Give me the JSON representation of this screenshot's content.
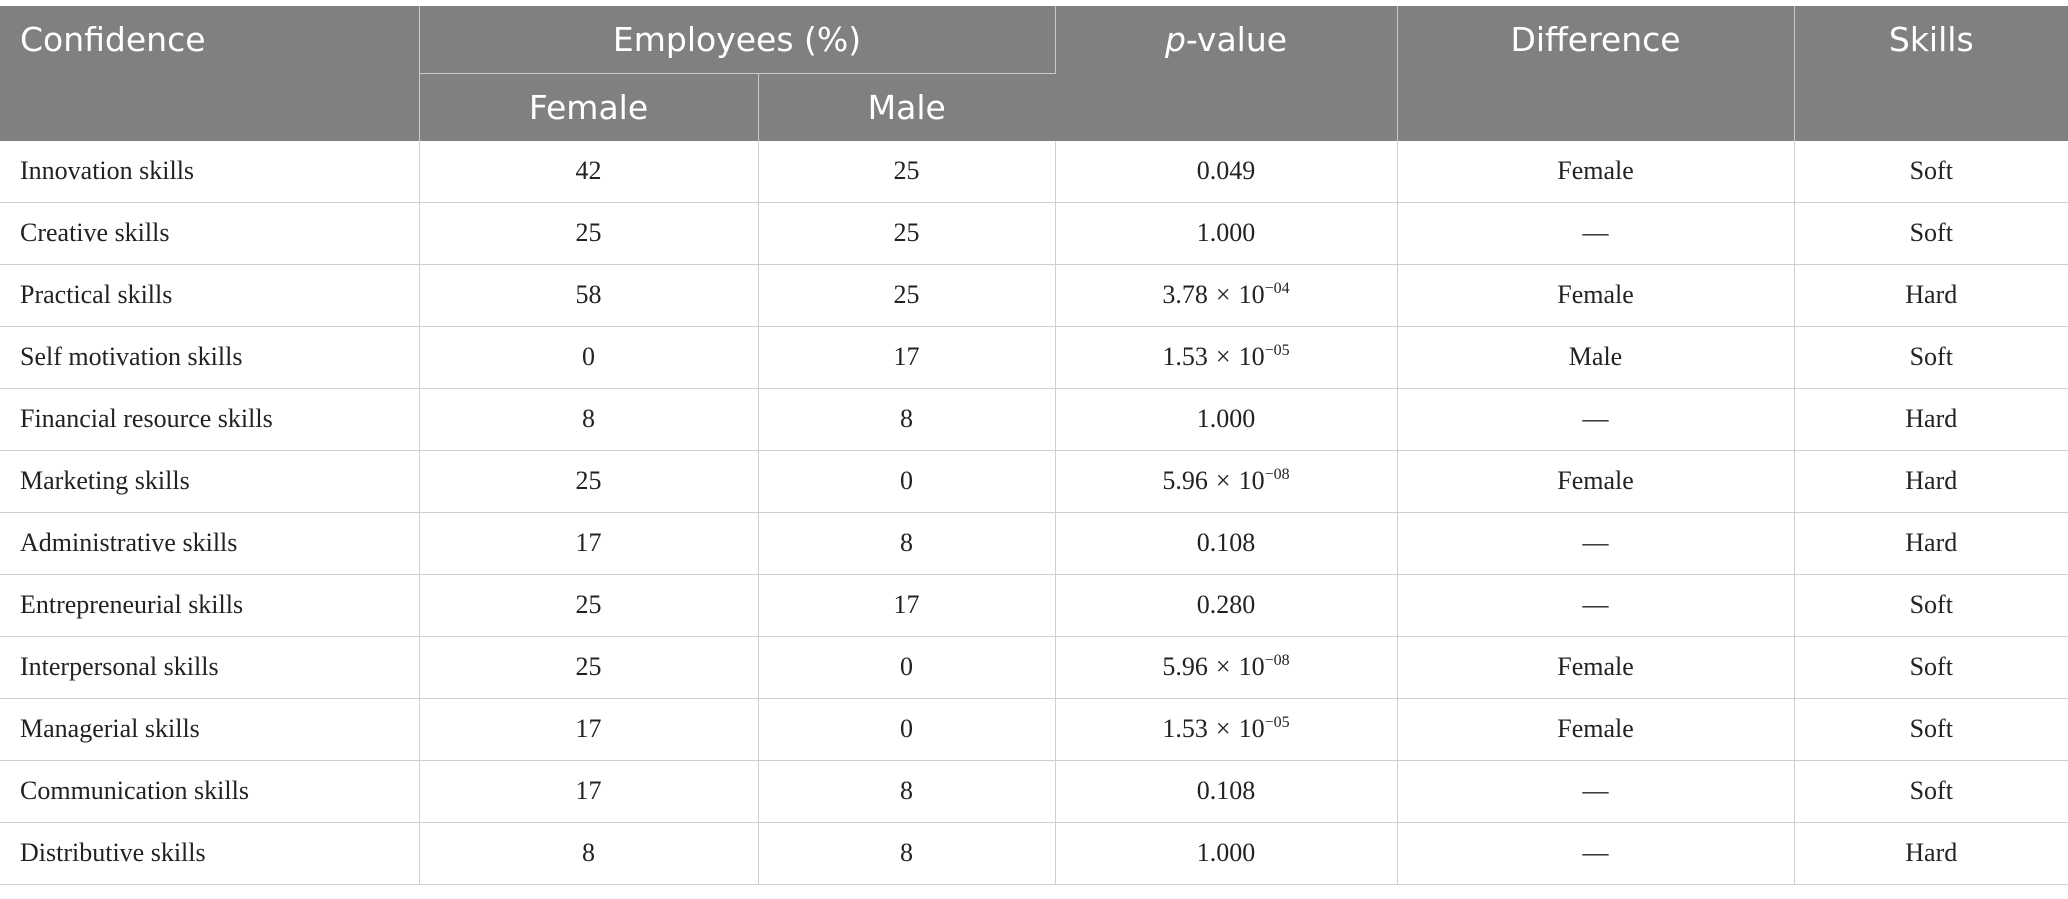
{
  "header": {
    "confidence": "Confidence",
    "employees": "Employees (%)",
    "female": "Female",
    "male": "Male",
    "p_italic": "p",
    "p_rest": "-value",
    "difference": "Difference",
    "skills": "Skills"
  },
  "rows": [
    {
      "name": "Innovation skills",
      "female": "42",
      "male": "25",
      "p_mant": "0.049",
      "p_exp": "",
      "difference": "Female",
      "skills": "Soft"
    },
    {
      "name": "Creative skills",
      "female": "25",
      "male": "25",
      "p_mant": "1.000",
      "p_exp": "",
      "difference": "—",
      "skills": "Soft"
    },
    {
      "name": "Practical skills",
      "female": "58",
      "male": "25",
      "p_mant": "3.78",
      "p_exp": "−04",
      "difference": "Female",
      "skills": "Hard"
    },
    {
      "name": "Self motivation skills",
      "female": "0",
      "male": "17",
      "p_mant": "1.53",
      "p_exp": "−05",
      "difference": "Male",
      "skills": "Soft"
    },
    {
      "name": "Financial resource skills",
      "female": "8",
      "male": "8",
      "p_mant": "1.000",
      "p_exp": "",
      "difference": "—",
      "skills": "Hard"
    },
    {
      "name": "Marketing skills",
      "female": "25",
      "male": "0",
      "p_mant": "5.96",
      "p_exp": "−08",
      "difference": "Female",
      "skills": "Hard"
    },
    {
      "name": "Administrative skills",
      "female": "17",
      "male": "8",
      "p_mant": "0.108",
      "p_exp": "",
      "difference": "—",
      "skills": "Hard"
    },
    {
      "name": "Entrepreneurial skills",
      "female": "25",
      "male": "17",
      "p_mant": "0.280",
      "p_exp": "",
      "difference": "—",
      "skills": "Soft"
    },
    {
      "name": "Interpersonal skills",
      "female": "25",
      "male": "0",
      "p_mant": "5.96",
      "p_exp": "−08",
      "difference": "Female",
      "skills": "Soft"
    },
    {
      "name": "Managerial skills",
      "female": "17",
      "male": "0",
      "p_mant": "1.53",
      "p_exp": "−05",
      "difference": "Female",
      "skills": "Soft"
    },
    {
      "name": "Communication skills",
      "female": "17",
      "male": "8",
      "p_mant": "0.108",
      "p_exp": "",
      "difference": "—",
      "skills": "Soft"
    },
    {
      "name": "Distributive skills",
      "female": "8",
      "male": "8",
      "p_mant": "1.000",
      "p_exp": "",
      "difference": "—",
      "skills": "Hard"
    }
  ],
  "sci": {
    "times": "×",
    "base": "10"
  },
  "colors": {
    "header_bg": "#808080",
    "header_text": "#ffffff",
    "body_text": "#222222",
    "grid": "#cfcfcf"
  }
}
